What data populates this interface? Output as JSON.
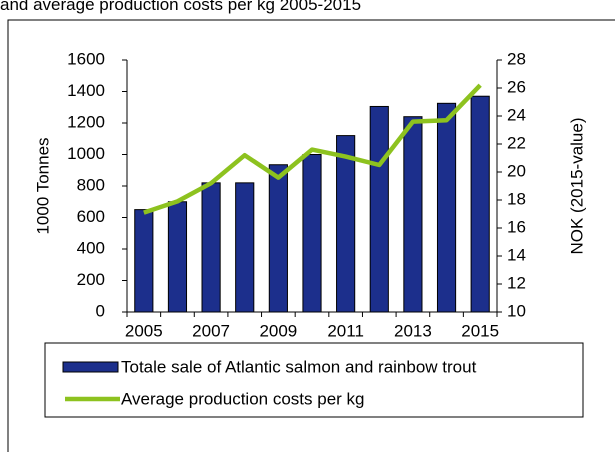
{
  "chart_data": {
    "type": "bar-line",
    "title": "and average production costs per kg 2005-2015",
    "y_label": "1000 Tonnes",
    "y2_label": "NOK (2015-value)",
    "categories": [
      "2005",
      null,
      "2007",
      null,
      "2009",
      null,
      "2011",
      null,
      "2013",
      null,
      "2015"
    ],
    "series": [
      {
        "name": "Totale sale of Atlantic salmon and rainbow trout",
        "type": "bar",
        "color": "#1c2f8c",
        "values": [
          650,
          700,
          820,
          820,
          935,
          1000,
          1120,
          1305,
          1240,
          1325,
          1370
        ]
      },
      {
        "name": "Average production costs per kg",
        "type": "line",
        "axis": "y2",
        "color": "#8dc21f",
        "values": [
          17.1,
          17.9,
          19.2,
          21.2,
          19.6,
          21.6,
          21.1,
          20.5,
          23.6,
          23.7,
          26.2
        ]
      }
    ],
    "ylim": [
      0,
      1600
    ],
    "yticks": [
      0,
      200,
      400,
      600,
      800,
      1000,
      1200,
      1400,
      1600
    ],
    "y2lim": [
      10,
      28
    ],
    "y2ticks": [
      10,
      12,
      14,
      16,
      18,
      20,
      22,
      24,
      26,
      28
    ],
    "grid": false,
    "legend": "bottom"
  }
}
